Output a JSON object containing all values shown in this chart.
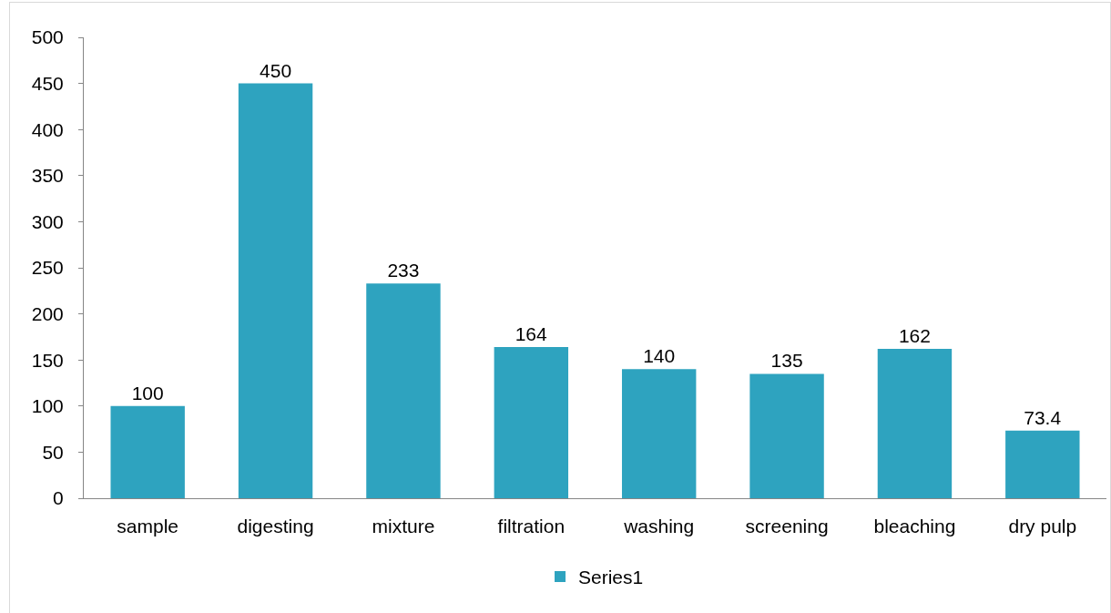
{
  "chart_data": {
    "type": "bar",
    "categories": [
      "sample",
      "digesting",
      "mixture",
      "filtration",
      "washing",
      "screening",
      "bleaching",
      "dry pulp"
    ],
    "series": [
      {
        "name": "Series1",
        "color": "#2ea3bf",
        "values": [
          100,
          450,
          233,
          164,
          140,
          135,
          162,
          73.4
        ]
      }
    ],
    "ylim": [
      0,
      500
    ],
    "yticks": [
      0,
      50,
      100,
      150,
      200,
      250,
      300,
      350,
      400,
      450,
      500
    ],
    "grid": false,
    "legend": "bottom",
    "data_labels": true
  }
}
